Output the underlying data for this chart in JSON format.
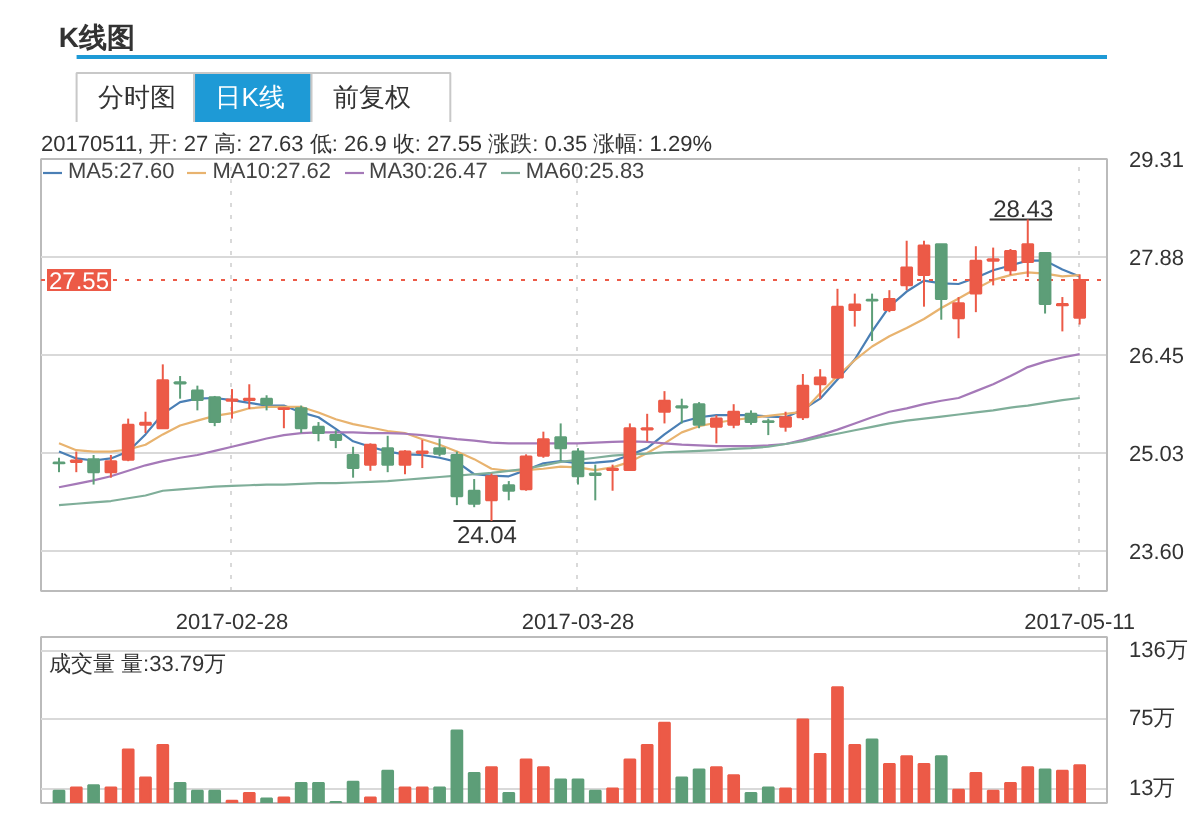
{
  "chart_data": [
    {
      "type": "candlestick",
      "title": "K线图",
      "subtitle": "20170511, 开: 27 高: 27.63 低: 26.9 收: 27.55 涨跌: 0.35 涨幅: 1.29%",
      "categories": [
        null,
        null,
        null,
        null,
        null,
        null,
        null,
        null,
        null,
        null,
        "2017-02-28",
        null,
        null,
        null,
        null,
        null,
        null,
        null,
        null,
        null,
        null,
        null,
        null,
        null,
        null,
        null,
        null,
        null,
        null,
        null,
        "2017-03-28",
        null,
        null,
        null,
        null,
        null,
        null,
        null,
        null,
        null,
        null,
        null,
        null,
        null,
        null,
        null,
        null,
        null,
        null,
        null,
        null,
        null,
        null,
        null,
        null,
        null,
        null,
        null,
        null,
        "2017-05-11"
      ],
      "ohlc": [
        [
          24.89,
          24.96,
          24.75,
          24.88
        ],
        [
          24.9,
          25.05,
          24.75,
          24.92
        ],
        [
          24.94,
          25.0,
          24.57,
          24.75
        ],
        [
          24.75,
          25.0,
          24.67,
          24.91
        ],
        [
          24.93,
          25.53,
          24.91,
          25.44
        ],
        [
          25.44,
          25.63,
          25.32,
          25.47
        ],
        [
          25.39,
          26.32,
          25.38,
          26.09
        ],
        [
          26.06,
          26.15,
          25.82,
          26.04
        ],
        [
          25.94,
          26.01,
          25.65,
          25.8
        ],
        [
          25.84,
          25.86,
          25.42,
          25.48
        ],
        [
          25.79,
          25.96,
          25.53,
          25.81
        ],
        [
          25.8,
          26.03,
          25.67,
          25.82
        ],
        [
          25.82,
          25.87,
          25.65,
          25.74
        ],
        [
          25.67,
          25.69,
          25.39,
          25.68
        ],
        [
          25.68,
          25.72,
          25.32,
          25.39
        ],
        [
          25.41,
          25.48,
          25.2,
          25.32
        ],
        [
          25.29,
          25.36,
          25.1,
          25.22
        ],
        [
          25.0,
          25.12,
          24.67,
          24.81
        ],
        [
          24.86,
          25.17,
          24.77,
          25.15
        ],
        [
          25.1,
          25.28,
          24.75,
          24.86
        ],
        [
          24.86,
          25.07,
          24.72,
          25.05
        ],
        [
          25.03,
          25.22,
          24.81,
          25.05
        ],
        [
          25.1,
          25.24,
          24.98,
          25.02
        ],
        [
          25.0,
          25.05,
          24.27,
          24.4
        ],
        [
          24.48,
          24.65,
          24.24,
          24.29
        ],
        [
          24.34,
          24.73,
          24.04,
          24.69
        ],
        [
          24.56,
          24.62,
          24.34,
          24.48
        ],
        [
          24.5,
          25.01,
          24.48,
          24.98
        ],
        [
          24.99,
          25.34,
          24.96,
          25.23
        ],
        [
          25.26,
          25.46,
          24.91,
          25.1
        ],
        [
          25.05,
          25.1,
          24.57,
          24.69
        ],
        [
          24.73,
          24.86,
          24.34,
          24.71
        ],
        [
          24.78,
          24.86,
          24.48,
          24.8
        ],
        [
          24.78,
          25.46,
          24.77,
          25.39
        ],
        [
          25.37,
          25.6,
          25.2,
          25.39
        ],
        [
          25.63,
          25.93,
          25.46,
          25.79
        ],
        [
          25.71,
          25.82,
          25.46,
          25.69
        ],
        [
          25.74,
          25.77,
          25.39,
          25.44
        ],
        [
          25.41,
          25.58,
          25.17,
          25.53
        ],
        [
          25.44,
          25.74,
          25.39,
          25.63
        ],
        [
          25.6,
          25.65,
          25.44,
          25.48
        ],
        [
          25.49,
          25.53,
          25.29,
          25.48
        ],
        [
          25.41,
          25.63,
          25.34,
          25.55
        ],
        [
          25.55,
          26.18,
          25.51,
          26.01
        ],
        [
          26.03,
          26.25,
          25.82,
          26.13
        ],
        [
          26.13,
          27.42,
          26.11,
          27.16
        ],
        [
          27.11,
          27.35,
          26.87,
          27.19
        ],
        [
          27.26,
          27.35,
          26.66,
          27.25
        ],
        [
          27.11,
          27.4,
          27.08,
          27.27
        ],
        [
          27.47,
          28.12,
          27.4,
          27.73
        ],
        [
          27.62,
          28.12,
          27.16,
          28.05
        ],
        [
          28.07,
          28.07,
          26.97,
          27.27
        ],
        [
          26.99,
          27.3,
          26.7,
          27.21
        ],
        [
          27.35,
          28.04,
          27.08,
          27.83
        ],
        [
          27.83,
          28.02,
          27.47,
          27.85
        ],
        [
          27.69,
          28.0,
          27.62,
          27.97
        ],
        [
          27.81,
          28.43,
          27.59,
          28.07
        ],
        [
          27.94,
          27.94,
          27.06,
          27.2
        ],
        [
          27.18,
          27.3,
          26.8,
          27.2
        ],
        [
          27.0,
          27.63,
          26.9,
          27.55
        ]
      ],
      "colors": [
        "#5d9e78",
        "#ec5a47",
        "#5d9e78",
        "#ec5a47",
        "#ec5a47",
        "#ec5a47",
        "#ec5a47",
        "#5d9e78",
        "#5d9e78",
        "#5d9e78",
        "#ec5a47",
        "#ec5a47",
        "#5d9e78",
        "#ec5a47",
        "#5d9e78",
        "#5d9e78",
        "#5d9e78",
        "#5d9e78",
        "#ec5a47",
        "#5d9e78",
        "#ec5a47",
        "#ec5a47",
        "#5d9e78",
        "#5d9e78",
        "#5d9e78",
        "#ec5a47",
        "#5d9e78",
        "#ec5a47",
        "#ec5a47",
        "#5d9e78",
        "#5d9e78",
        "#5d9e78",
        "#ec5a47",
        "#ec5a47",
        "#ec5a47",
        "#ec5a47",
        "#5d9e78",
        "#5d9e78",
        "#ec5a47",
        "#ec5a47",
        "#5d9e78",
        "#5d9e78",
        "#ec5a47",
        "#ec5a47",
        "#ec5a47",
        "#ec5a47",
        "#ec5a47",
        "#5d9e78",
        "#ec5a47",
        "#ec5a47",
        "#ec5a47",
        "#5d9e78",
        "#ec5a47",
        "#ec5a47",
        "#ec5a47",
        "#ec5a47",
        "#ec5a47",
        "#5d9e78",
        "#ec5a47",
        "#ec5a47"
      ],
      "series": [
        {
          "type": "line",
          "name": "MA5:27.60",
          "color": "#4a7fb5",
          "values": [
            25.05,
            24.95,
            24.92,
            24.95,
            25.05,
            25.3,
            25.6,
            25.77,
            25.82,
            25.83,
            25.8,
            25.76,
            25.72,
            25.72,
            25.62,
            25.55,
            25.38,
            25.2,
            25.12,
            25.05,
            25.01,
            25.0,
            24.96,
            24.9,
            24.72,
            24.7,
            24.69,
            24.78,
            24.88,
            24.91,
            24.88,
            24.89,
            24.91,
            25.0,
            25.1,
            25.3,
            25.48,
            25.55,
            25.58,
            25.58,
            25.58,
            25.56,
            25.55,
            25.66,
            25.82,
            26.1,
            26.39,
            26.8,
            27.16,
            27.38,
            27.54,
            27.5,
            27.49,
            27.58,
            27.69,
            27.76,
            27.83,
            27.83,
            27.7,
            27.6
          ]
        },
        {
          "type": "line",
          "name": "MA10:27.62",
          "color": "#e8b36f",
          "values": [
            25.17,
            25.07,
            25.05,
            25.05,
            25.08,
            25.15,
            25.3,
            25.43,
            25.5,
            25.57,
            25.61,
            25.68,
            25.7,
            25.7,
            25.7,
            25.62,
            25.52,
            25.45,
            25.4,
            25.35,
            25.32,
            25.23,
            25.15,
            25.05,
            24.94,
            24.8,
            24.77,
            24.78,
            24.8,
            24.83,
            24.82,
            24.78,
            24.82,
            24.9,
            25.03,
            25.17,
            25.33,
            25.42,
            25.47,
            25.51,
            25.54,
            25.57,
            25.6,
            25.63,
            25.9,
            26.15,
            26.38,
            26.58,
            26.73,
            26.85,
            26.98,
            27.14,
            27.28,
            27.42,
            27.55,
            27.62,
            27.66,
            27.64,
            27.6,
            27.62
          ]
        },
        {
          "type": "line",
          "name": "MA30:26.47",
          "color": "#a579b8",
          "values": [
            24.53,
            24.58,
            24.63,
            24.69,
            24.77,
            24.85,
            24.91,
            24.96,
            25.0,
            25.06,
            25.12,
            25.18,
            25.24,
            25.29,
            25.32,
            25.33,
            25.33,
            25.33,
            25.32,
            25.32,
            25.31,
            25.29,
            25.26,
            25.23,
            25.21,
            25.18,
            25.17,
            25.17,
            25.17,
            25.17,
            25.17,
            25.18,
            25.19,
            25.2,
            25.19,
            25.17,
            25.15,
            25.14,
            25.13,
            25.13,
            25.13,
            25.14,
            25.16,
            25.22,
            25.29,
            25.37,
            25.46,
            25.55,
            25.63,
            25.68,
            25.74,
            25.79,
            25.83,
            25.93,
            26.03,
            26.15,
            26.28,
            26.36,
            26.42,
            26.47
          ]
        },
        {
          "type": "line",
          "name": "MA60:25.83",
          "color": "#7fae99",
          "values": [
            24.27,
            24.29,
            24.31,
            24.33,
            24.37,
            24.41,
            24.48,
            24.5,
            24.52,
            24.54,
            24.55,
            24.56,
            24.57,
            24.57,
            24.58,
            24.59,
            24.59,
            24.6,
            24.61,
            24.62,
            24.64,
            24.66,
            24.68,
            24.7,
            24.72,
            24.74,
            24.77,
            24.8,
            24.85,
            24.9,
            24.93,
            24.96,
            24.99,
            25.01,
            25.02,
            25.04,
            25.05,
            25.06,
            25.07,
            25.09,
            25.1,
            25.12,
            25.16,
            25.2,
            25.26,
            25.31,
            25.36,
            25.41,
            25.46,
            25.5,
            25.53,
            25.56,
            25.59,
            25.62,
            25.65,
            25.69,
            25.72,
            25.76,
            25.8,
            25.83
          ]
        }
      ],
      "ylim": [
        23.02,
        29.31
      ],
      "yticks": [
        {
          "value": 23.6,
          "label": "23.60"
        },
        25.03,
        26.45,
        27.88,
        29.31
      ],
      "ref_lines": [
        {
          "axis": "y",
          "value": 27.55,
          "label": "27.55",
          "color": "#ec5a47",
          "line_style": "dotted"
        }
      ],
      "annotations": [
        "分时图",
        "日K线",
        "前复权",
        {
          "text": "28.43",
          "y": 28.43
        },
        {
          "text": "24.04",
          "y": 24.04
        }
      ],
      "grid": true,
      "legend": "top left"
    },
    {
      "type": "bar",
      "title": "成交量 量:33.79万",
      "categories": [
        null,
        null,
        null,
        null,
        null,
        null,
        null,
        null,
        null,
        null,
        null,
        null,
        null,
        null,
        null,
        null,
        null,
        null,
        null,
        null,
        null,
        null,
        null,
        null,
        null,
        null,
        null,
        null,
        null,
        null,
        null,
        null,
        null,
        null,
        null,
        null,
        null,
        null,
        null,
        null,
        null,
        null,
        null,
        null,
        null,
        null,
        null,
        null,
        null,
        null,
        null,
        null,
        null,
        null,
        null,
        null,
        null,
        null,
        null,
        null
      ],
      "values": [
        11,
        14,
        16,
        14,
        48,
        23,
        52,
        18,
        11,
        11,
        2,
        9,
        4,
        5,
        18,
        18,
        1,
        19,
        5,
        29,
        14,
        14,
        14,
        65,
        27,
        32,
        9,
        39,
        32,
        21,
        21,
        11,
        13,
        39,
        52,
        72,
        23,
        30,
        32,
        25,
        9,
        14,
        13,
        75,
        44,
        104,
        52,
        57,
        35,
        42,
        35,
        42,
        12,
        27,
        11,
        18,
        32,
        30,
        29,
        33.79
      ],
      "colors": [
        "#5d9e78",
        "#ec5a47",
        "#5d9e78",
        "#ec5a47",
        "#ec5a47",
        "#ec5a47",
        "#ec5a47",
        "#5d9e78",
        "#5d9e78",
        "#5d9e78",
        "#ec5a47",
        "#ec5a47",
        "#5d9e78",
        "#ec5a47",
        "#5d9e78",
        "#5d9e78",
        "#5d9e78",
        "#5d9e78",
        "#ec5a47",
        "#5d9e78",
        "#ec5a47",
        "#ec5a47",
        "#5d9e78",
        "#5d9e78",
        "#5d9e78",
        "#ec5a47",
        "#5d9e78",
        "#ec5a47",
        "#ec5a47",
        "#5d9e78",
        "#5d9e78",
        "#5d9e78",
        "#ec5a47",
        "#ec5a47",
        "#ec5a47",
        "#ec5a47",
        "#5d9e78",
        "#5d9e78",
        "#ec5a47",
        "#ec5a47",
        "#5d9e78",
        "#5d9e78",
        "#ec5a47",
        "#ec5a47",
        "#ec5a47",
        "#ec5a47",
        "#ec5a47",
        "#5d9e78",
        "#ec5a47",
        "#ec5a47",
        "#ec5a47",
        "#5d9e78",
        "#ec5a47",
        "#ec5a47",
        "#ec5a47",
        "#ec5a47",
        "#ec5a47",
        "#5d9e78",
        "#ec5a47",
        "#ec5a47"
      ],
      "ylim": [
        0,
        149
      ],
      "yticks": [
        {
          "value": 13,
          "label": "13万"
        },
        {
          "value": 75,
          "label": "75万"
        },
        {
          "value": 136,
          "label": "136万"
        }
      ],
      "tick_labels": "y",
      "grid": "y"
    }
  ]
}
